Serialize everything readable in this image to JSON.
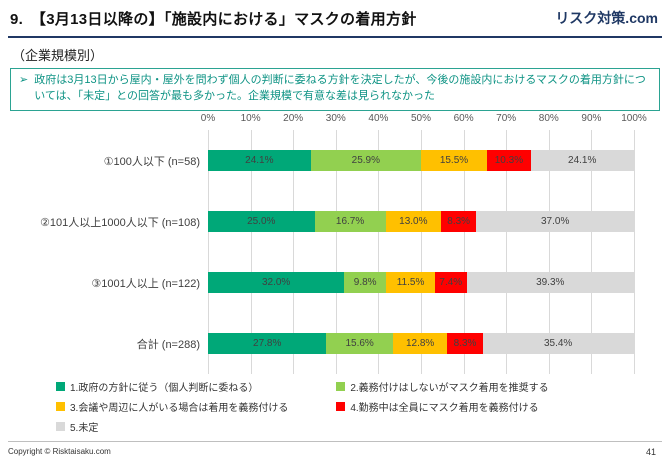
{
  "colors": {
    "brand_navy": "#1F3864",
    "title_rule_navy": "#203864",
    "note_text_teal": "#0E9384",
    "note_border_teal": "#2BA392",
    "gridline_gray": "#D9D9D9",
    "axis_text_gray": "#595959"
  },
  "header": {
    "slide_number_and_title": "9.　【3月13日以降の】「施設内における」マスクの着用方針",
    "brand": "リスク対策.com",
    "subtitle": "（企業規模別）"
  },
  "note": {
    "bullet": "➢",
    "text": "政府は3月13日から屋内・屋外を問わず個人の判断に委ねる方針を決定したが、今後の施設内におけるマスクの着用方針については、「未定」との回答が最も多かった。企業規模で有意な差は見られなかった"
  },
  "chart_data": {
    "type": "bar",
    "orientation": "horizontal",
    "stacked": true,
    "unit": "%",
    "xlim": [
      0,
      100
    ],
    "x_ticks": [
      "0%",
      "10%",
      "20%",
      "30%",
      "40%",
      "50%",
      "60%",
      "70%",
      "80%",
      "90%",
      "100%"
    ],
    "grid": true,
    "legend_position": "bottom",
    "categories": [
      "①100人以下 (n=58)",
      "②101人以上1000人以下 (n=108)",
      "③1001人以上 (n=122)",
      "合計 (n=288)"
    ],
    "series": [
      {
        "name": "1.政府の方針に従う（個人判断に委ねる）",
        "color": "#00A878",
        "values": [
          24.1,
          25.0,
          32.0,
          27.8
        ]
      },
      {
        "name": "2.義務付けはしないがマスク着用を推奨する",
        "color": "#92D050",
        "values": [
          25.9,
          16.7,
          9.8,
          15.6
        ]
      },
      {
        "name": "3.会議や周辺に人がいる場合は着用を義務付ける",
        "color": "#FFC000",
        "values": [
          15.5,
          13.0,
          11.5,
          12.8
        ]
      },
      {
        "name": "4.勤務中は全員にマスク着用を義務付ける",
        "color": "#FF0000",
        "values": [
          10.3,
          8.3,
          7.4,
          8.3
        ]
      },
      {
        "name": "5.未定",
        "color": "#D9D9D9",
        "values": [
          24.1,
          37.0,
          39.3,
          35.4
        ]
      }
    ]
  },
  "footer": {
    "copyright": "Copyright © Risktaisaku.com",
    "page": "41"
  }
}
